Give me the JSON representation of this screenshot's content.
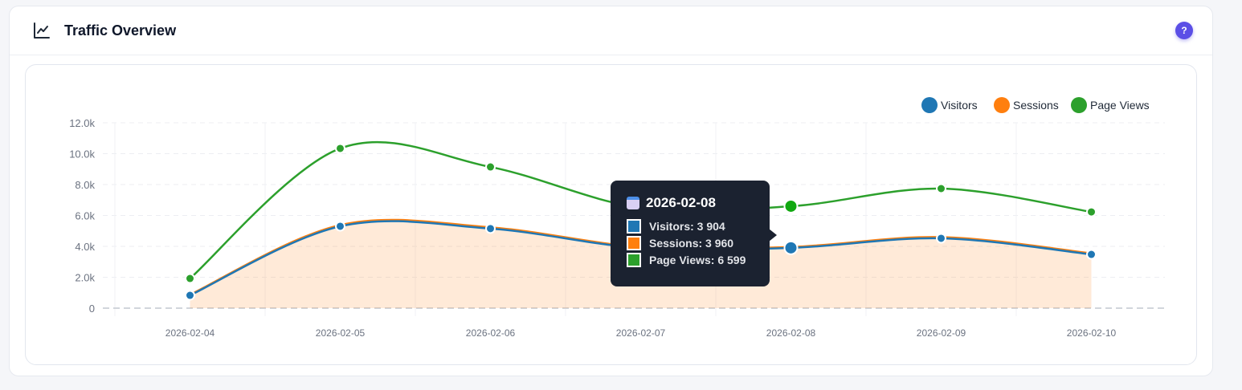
{
  "header": {
    "title": "Traffic Overview",
    "icon": "line-chart-icon",
    "help_label": "?"
  },
  "chart_data": {
    "type": "line",
    "categories": [
      "2026-02-04",
      "2026-02-05",
      "2026-02-06",
      "2026-02-07",
      "2026-02-08",
      "2026-02-09",
      "2026-02-10"
    ],
    "series": [
      {
        "name": "Visitors",
        "color": "#1f77b4",
        "values": [
          830,
          5300,
          5150,
          3900,
          3904,
          4520,
          3480
        ]
      },
      {
        "name": "Sessions",
        "color": "#ff7f0e",
        "values": [
          870,
          5380,
          5230,
          3960,
          3960,
          4600,
          3550
        ],
        "area": true
      },
      {
        "name": "Page Views",
        "color": "#2ca02c",
        "values": [
          1920,
          10340,
          9140,
          6500,
          6599,
          7740,
          6230
        ]
      }
    ],
    "yticks": [
      "0",
      "2.0k",
      "4.0k",
      "6.0k",
      "8.0k",
      "10.0k",
      "12.0k"
    ],
    "ylim": [
      0,
      12000
    ],
    "grid": true,
    "legend": "top-right"
  },
  "tooltip": {
    "date": "2026-02-08",
    "rows": [
      {
        "label": "Visitors: 3 904",
        "color": "#1f77b4"
      },
      {
        "label": "Sessions: 3 960",
        "color": "#ff7f0e"
      },
      {
        "label": "Page Views: 6 599",
        "color": "#2ca02c"
      }
    ]
  }
}
